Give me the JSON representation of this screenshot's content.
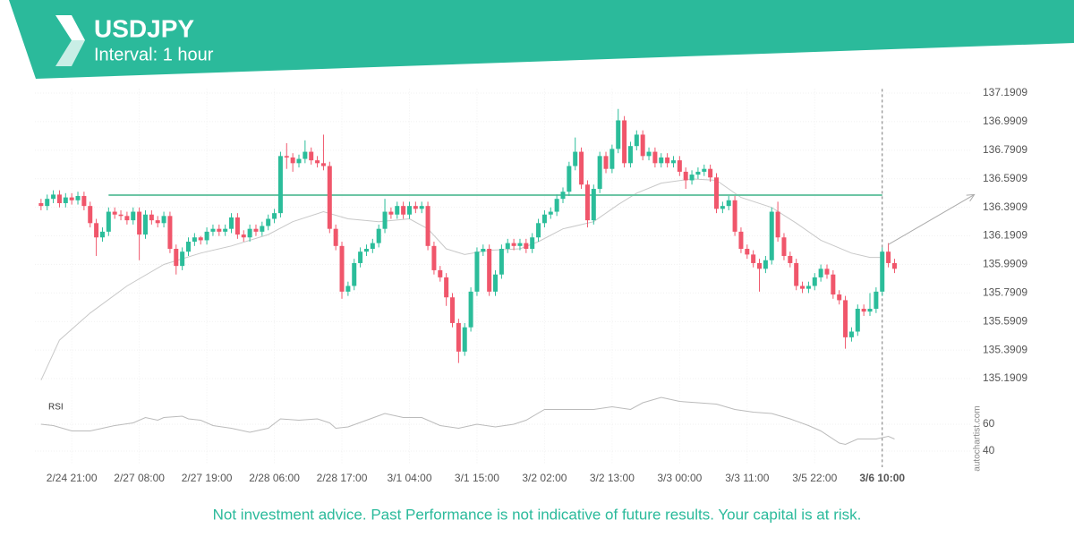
{
  "header": {
    "title": "USDJPY",
    "subtitle": "Interval: 1 hour"
  },
  "chart_data": {
    "type": "candlestick",
    "up_color": "#2bbd9a",
    "down_color": "#f0566b",
    "grid": true,
    "open": [
      136.42,
      136.4,
      136.45,
      136.48,
      136.42,
      136.46,
      136.44,
      136.47,
      136.4,
      136.28,
      136.18,
      136.22,
      136.36,
      136.34,
      136.33,
      136.3,
      136.36,
      136.2,
      136.34,
      136.3,
      136.28,
      136.33,
      136.1,
      135.98,
      136.08,
      136.15,
      136.18,
      136.16,
      136.22,
      136.24,
      136.22,
      136.24,
      136.32,
      136.2,
      136.18,
      136.24,
      136.22,
      136.26,
      136.31,
      136.35,
      136.75,
      136.74,
      136.7,
      136.73,
      136.78,
      136.72,
      136.7,
      136.68,
      136.24,
      136.12,
      135.8,
      135.84,
      136.0,
      136.08,
      136.1,
      136.14,
      136.24,
      136.36,
      136.34,
      136.4,
      136.34,
      136.4,
      136.38,
      136.4,
      136.12,
      135.95,
      135.9,
      135.76,
      135.58,
      135.38,
      135.55,
      135.8,
      136.08,
      136.1,
      135.8,
      135.92,
      136.1,
      136.14,
      136.12,
      136.14,
      136.1,
      136.18,
      136.28,
      136.34,
      136.36,
      136.45,
      136.5,
      136.68,
      136.78,
      136.55,
      136.3,
      136.52,
      136.75,
      136.66,
      136.8,
      137.0,
      136.7,
      136.82,
      136.9,
      136.75,
      136.78,
      136.7,
      136.74,
      136.7,
      136.72,
      136.64,
      136.58,
      136.62,
      136.64,
      136.66,
      136.6,
      136.38,
      136.4,
      136.44,
      136.22,
      136.1,
      136.06,
      136.0,
      135.96,
      136.02,
      136.36,
      136.18,
      136.05,
      136.0,
      135.84,
      135.82,
      135.84,
      135.9,
      135.96,
      135.92,
      135.78,
      135.74,
      135.48,
      135.52,
      135.68,
      135.66,
      135.68,
      135.8,
      136.08,
      136.0
    ],
    "high": [
      136.45,
      136.48,
      136.51,
      136.51,
      136.49,
      136.49,
      136.5,
      136.5,
      136.43,
      136.31,
      136.25,
      136.39,
      136.39,
      136.37,
      136.36,
      136.39,
      136.39,
      136.37,
      136.37,
      136.33,
      136.36,
      136.36,
      136.13,
      136.11,
      136.18,
      136.21,
      136.19,
      136.25,
      136.27,
      136.27,
      136.27,
      136.35,
      136.35,
      136.23,
      136.27,
      136.27,
      136.29,
      136.34,
      136.38,
      136.78,
      136.84,
      136.77,
      136.76,
      136.86,
      136.81,
      136.75,
      136.9,
      136.71,
      136.27,
      136.15,
      135.87,
      136.03,
      136.11,
      136.13,
      136.17,
      136.27,
      136.45,
      136.39,
      136.43,
      136.43,
      136.43,
      136.43,
      136.43,
      136.43,
      136.15,
      135.98,
      135.93,
      135.79,
      135.61,
      135.58,
      135.83,
      136.11,
      136.13,
      136.13,
      135.95,
      136.13,
      136.17,
      136.17,
      136.17,
      136.17,
      136.21,
      136.31,
      136.37,
      136.39,
      136.48,
      136.53,
      136.71,
      136.88,
      136.81,
      136.58,
      136.55,
      136.78,
      136.78,
      136.83,
      137.08,
      137.03,
      136.85,
      136.93,
      136.93,
      136.81,
      136.81,
      136.77,
      136.77,
      136.75,
      136.75,
      136.67,
      136.65,
      136.67,
      136.69,
      136.69,
      136.63,
      136.43,
      136.47,
      136.47,
      136.25,
      136.13,
      136.09,
      136.03,
      136.05,
      136.39,
      136.43,
      136.21,
      136.08,
      136.03,
      135.87,
      135.87,
      135.93,
      135.99,
      135.99,
      135.95,
      135.81,
      135.77,
      135.55,
      135.71,
      135.71,
      135.79,
      135.83,
      136.11,
      136.14,
      136.03
    ],
    "low": [
      136.37,
      136.37,
      136.42,
      136.39,
      136.39,
      136.41,
      136.41,
      136.37,
      136.25,
      136.05,
      136.15,
      136.19,
      136.31,
      136.3,
      136.27,
      136.27,
      136.02,
      136.17,
      136.27,
      136.25,
      136.25,
      136.07,
      135.92,
      135.95,
      136.05,
      136.12,
      136.13,
      136.13,
      136.19,
      136.19,
      136.19,
      136.21,
      136.17,
      136.15,
      136.15,
      136.19,
      136.19,
      136.23,
      136.28,
      136.32,
      136.66,
      136.64,
      136.67,
      136.7,
      136.69,
      136.67,
      136.65,
      136.21,
      136.09,
      135.75,
      135.77,
      135.81,
      135.97,
      136.05,
      136.07,
      136.11,
      136.21,
      136.31,
      136.31,
      136.31,
      136.31,
      136.35,
      136.35,
      136.09,
      135.92,
      135.87,
      135.7,
      135.55,
      135.3,
      135.35,
      135.52,
      135.77,
      136.05,
      135.77,
      135.77,
      135.89,
      136.07,
      136.09,
      136.09,
      136.07,
      136.07,
      136.15,
      136.25,
      136.31,
      136.33,
      136.42,
      136.47,
      136.65,
      136.52,
      136.25,
      136.27,
      136.49,
      136.63,
      136.63,
      136.77,
      136.67,
      136.67,
      136.79,
      136.72,
      136.72,
      136.67,
      136.67,
      136.67,
      136.67,
      136.61,
      136.52,
      136.55,
      136.59,
      136.61,
      136.57,
      136.35,
      136.35,
      136.37,
      136.19,
      136.07,
      136.03,
      135.97,
      135.8,
      135.93,
      135.99,
      136.15,
      136.02,
      135.97,
      135.81,
      135.79,
      135.79,
      135.81,
      135.87,
      135.89,
      135.75,
      135.71,
      135.4,
      135.45,
      135.49,
      135.63,
      135.63,
      135.65,
      135.77,
      135.97,
      135.93
    ],
    "close": [
      136.4,
      136.45,
      136.48,
      136.42,
      136.46,
      136.44,
      136.47,
      136.4,
      136.28,
      136.18,
      136.22,
      136.36,
      136.34,
      136.33,
      136.3,
      136.36,
      136.2,
      136.34,
      136.3,
      136.28,
      136.33,
      136.1,
      135.98,
      136.08,
      136.15,
      136.18,
      136.16,
      136.22,
      136.24,
      136.22,
      136.24,
      136.32,
      136.2,
      136.18,
      136.24,
      136.22,
      136.26,
      136.31,
      136.35,
      136.75,
      136.74,
      136.7,
      136.73,
      136.78,
      136.72,
      136.7,
      136.68,
      136.24,
      136.12,
      135.8,
      135.84,
      136.0,
      136.08,
      136.1,
      136.14,
      136.24,
      136.36,
      136.34,
      136.4,
      136.34,
      136.4,
      136.38,
      136.4,
      136.12,
      135.95,
      135.9,
      135.76,
      135.58,
      135.38,
      135.55,
      135.8,
      136.08,
      136.1,
      135.8,
      135.92,
      136.1,
      136.14,
      136.12,
      136.14,
      136.1,
      136.18,
      136.28,
      136.34,
      136.36,
      136.45,
      136.5,
      136.68,
      136.78,
      136.55,
      136.3,
      136.52,
      136.75,
      136.66,
      136.8,
      137.0,
      136.7,
      136.82,
      136.9,
      136.75,
      136.78,
      136.7,
      136.74,
      136.7,
      136.72,
      136.64,
      136.58,
      136.62,
      136.64,
      136.66,
      136.6,
      136.38,
      136.4,
      136.44,
      136.22,
      136.1,
      136.06,
      136.0,
      135.96,
      136.02,
      136.36,
      136.18,
      136.05,
      136.0,
      135.84,
      135.82,
      135.84,
      135.9,
      135.96,
      135.92,
      135.78,
      135.74,
      135.48,
      135.52,
      135.68,
      135.66,
      135.68,
      135.8,
      136.08,
      136.0,
      135.96
    ],
    "ylim": [
      135.15,
      137.22
    ],
    "yticks": [
      135.1909,
      135.3909,
      135.5909,
      135.7909,
      135.9909,
      136.1909,
      136.3909,
      136.5909,
      136.7909,
      136.9909,
      137.1909
    ],
    "xlim": [
      -1,
      153
    ],
    "xticks": [
      {
        "value": 5,
        "label": "2/24 21:00"
      },
      {
        "value": 16,
        "label": "2/27 08:00"
      },
      {
        "value": 27,
        "label": "2/27 19:00"
      },
      {
        "value": 38,
        "label": "2/28 06:00"
      },
      {
        "value": 49,
        "label": "2/28 17:00"
      },
      {
        "value": 60,
        "label": "3/1 04:00"
      },
      {
        "value": 71,
        "label": "3/1 15:00"
      },
      {
        "value": 82,
        "label": "3/2 02:00"
      },
      {
        "value": 93,
        "label": "3/2 13:00"
      },
      {
        "value": 104,
        "label": "3/3 00:00"
      },
      {
        "value": 115,
        "label": "3/3 11:00"
      },
      {
        "value": 126,
        "label": "3/5 22:00"
      },
      {
        "value": 137,
        "label": "3/6 10:00"
      }
    ],
    "moving_average": {
      "color": "#c8c8c8",
      "x": [
        0,
        3,
        8,
        14,
        20,
        26,
        31,
        37,
        41,
        46,
        50,
        55,
        60,
        63,
        66,
        69,
        73,
        78,
        81,
        85,
        90,
        94,
        97,
        101,
        106,
        110,
        114,
        119,
        123,
        127,
        132,
        135,
        137
      ],
      "values": [
        135.18,
        135.46,
        135.65,
        135.84,
        135.99,
        136.07,
        136.12,
        136.2,
        136.29,
        136.36,
        136.31,
        136.29,
        136.31,
        136.24,
        136.1,
        136.06,
        136.09,
        136.1,
        136.15,
        136.24,
        136.29,
        136.41,
        136.49,
        136.56,
        136.59,
        136.58,
        136.46,
        136.39,
        136.28,
        136.16,
        136.07,
        136.04,
        136.04
      ]
    },
    "level": {
      "value": 136.476,
      "from": 11,
      "to": 137,
      "color": "#6cc5a5"
    },
    "forecast": {
      "x": [
        138,
        152
      ],
      "values": [
        136.13,
        136.48
      ],
      "color": "#aaaaaa"
    },
    "rsi": {
      "label": "RSI",
      "color": "#bbbbbb",
      "ylim": [
        30,
        80
      ],
      "yticks": [
        40,
        60
      ],
      "x": [
        0,
        2,
        5,
        8,
        10,
        12,
        15,
        17,
        19,
        20,
        23,
        24,
        26,
        28,
        31,
        34,
        37,
        39,
        42,
        45,
        47,
        48,
        50,
        53,
        56,
        59,
        62,
        65,
        68,
        71,
        74,
        77,
        79,
        82,
        87,
        90,
        93,
        96,
        98,
        101,
        104,
        107,
        110,
        113,
        116,
        119,
        122,
        125,
        127,
        130,
        131,
        133,
        136,
        138,
        139
      ],
      "values": [
        60,
        59,
        55,
        55,
        57,
        59,
        61,
        65,
        63,
        65,
        66,
        64,
        63,
        59,
        57,
        54,
        57,
        64,
        63,
        64,
        61,
        57,
        58,
        63,
        68,
        65,
        65,
        59,
        57,
        60,
        58,
        60,
        63,
        71,
        71,
        71,
        73,
        71,
        76,
        80,
        77,
        76,
        75,
        71,
        69,
        68,
        64,
        59,
        55,
        46,
        45,
        49,
        49,
        51,
        49
      ]
    }
  },
  "watermark": "autochartist.com",
  "disclaimer": "Not investment advice. Past Performance is not indicative of future results. Your capital is at risk."
}
